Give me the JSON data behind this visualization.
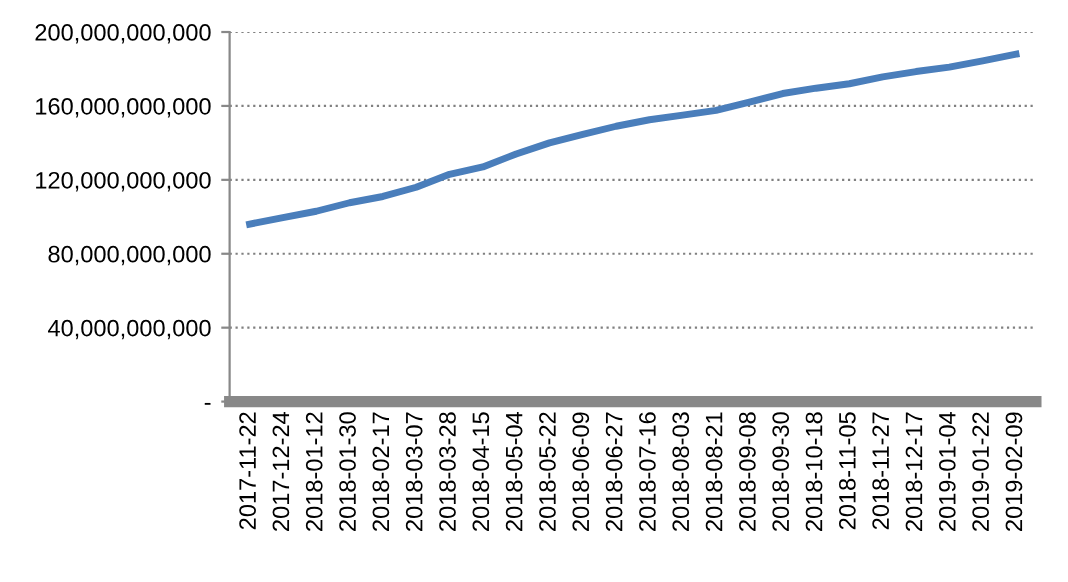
{
  "chart_data": {
    "type": "line",
    "categories": [
      "2017-11-22",
      "2017-12-24",
      "2018-01-12",
      "2018-01-30",
      "2018-02-17",
      "2018-03-07",
      "2018-03-28",
      "2018-04-15",
      "2018-05-04",
      "2018-05-22",
      "2018-06-09",
      "2018-06-27",
      "2018-07-16",
      "2018-08-03",
      "2018-08-21",
      "2018-09-08",
      "2018-09-30",
      "2018-10-18",
      "2018-11-05",
      "2018-11-27",
      "2018-12-17",
      "2019-01-04",
      "2019-01-22",
      "2019-02-09"
    ],
    "series": [
      {
        "color": "#4a7ebb",
        "values": [
          96000000000,
          99600000000,
          103000000000,
          107600000000,
          111000000000,
          116000000000,
          123000000000,
          127000000000,
          134000000000,
          140000000000,
          144600000000,
          149000000000,
          152500000000,
          155000000000,
          157600000000,
          162000000000,
          166700000000,
          169600000000,
          172000000000,
          175700000000,
          178600000000,
          181000000000,
          184400000000,
          188000000000
        ]
      }
    ],
    "ylim": [
      0,
      200000000000
    ],
    "yticks": [
      {
        "value": 0,
        "label": "-"
      },
      {
        "value": 40000000000,
        "label": "40,000,000,000"
      },
      {
        "value": 80000000000,
        "label": "80,000,000,000"
      },
      {
        "value": 120000000000,
        "label": "120,000,000,000"
      },
      {
        "value": 160000000000,
        "label": "160,000,000,000"
      },
      {
        "value": 200000000000,
        "label": "200,000,000,000"
      }
    ],
    "grid": "y",
    "legend": false,
    "marker": "none",
    "line_style": "solid"
  }
}
